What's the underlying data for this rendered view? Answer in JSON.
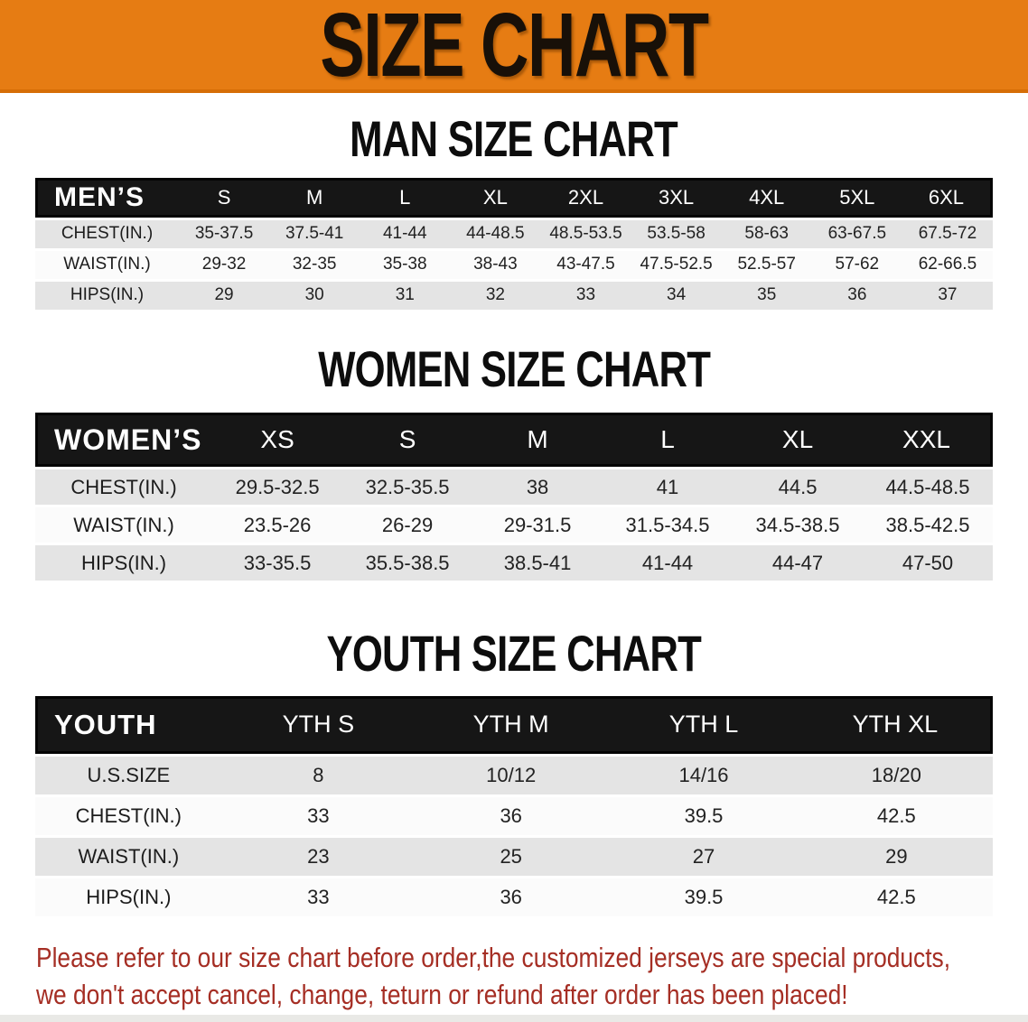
{
  "banner": {
    "title": "SIZE CHART",
    "bg_color": "#E67C13",
    "text_color": "#181008"
  },
  "sections": [
    {
      "heading": "MAN SIZE CHART",
      "table": {
        "label": "MEN’S",
        "columns": [
          "S",
          "M",
          "L",
          "XL",
          "2XL",
          "3XL",
          "4XL",
          "5XL",
          "6XL"
        ],
        "rows": [
          {
            "label": "CHEST(IN.)",
            "values": [
              "35-37.5",
              "37.5-41",
              "41-44",
              "44-48.5",
              "48.5-53.5",
              "53.5-58",
              "58-63",
              "63-67.5",
              "67.5-72"
            ]
          },
          {
            "label": "WAIST(IN.)",
            "values": [
              "29-32",
              "32-35",
              "35-38",
              "38-43",
              "43-47.5",
              "47.5-52.5",
              "52.5-57",
              "57-62",
              "62-66.5"
            ]
          },
          {
            "label": "HIPS(IN.)",
            "values": [
              "29",
              "30",
              "31",
              "32",
              "33",
              "34",
              "35",
              "36",
              "37"
            ]
          }
        ]
      }
    },
    {
      "heading": "WOMEN SIZE CHART",
      "table": {
        "label": "WOMEN’S",
        "columns": [
          "XS",
          "S",
          "M",
          "L",
          "XL",
          "XXL"
        ],
        "rows": [
          {
            "label": "CHEST(IN.)",
            "values": [
              "29.5-32.5",
              "32.5-35.5",
              "38",
              "41",
              "44.5",
              "44.5-48.5"
            ]
          },
          {
            "label": "WAIST(IN.)",
            "values": [
              "23.5-26",
              "26-29",
              "29-31.5",
              "31.5-34.5",
              "34.5-38.5",
              "38.5-42.5"
            ]
          },
          {
            "label": "HIPS(IN.)",
            "values": [
              "33-35.5",
              "35.5-38.5",
              "38.5-41",
              "41-44",
              "44-47",
              "47-50"
            ]
          }
        ]
      }
    },
    {
      "heading": "YOUTH SIZE CHART",
      "table": {
        "label": "YOUTH",
        "columns": [
          "YTH S",
          "YTH M",
          "YTH L",
          "YTH XL"
        ],
        "rows": [
          {
            "label": "U.S.SIZE",
            "values": [
              "8",
              "10/12",
              "14/16",
              "18/20"
            ]
          },
          {
            "label": "CHEST(IN.)",
            "values": [
              "33",
              "36",
              "39.5",
              "42.5"
            ]
          },
          {
            "label": "WAIST(IN.)",
            "values": [
              "23",
              "25",
              "27",
              "29"
            ]
          },
          {
            "label": "HIPS(IN.)",
            "values": [
              "33",
              "36",
              "39.5",
              "42.5"
            ]
          }
        ]
      }
    }
  ],
  "disclaimer": {
    "line1": "Please refer to our size chart before order,the customized jerseys are special products,",
    "line2": "we don't accept cancel, change, teturn or refund after order has been placed!",
    "color": "#A52E24"
  },
  "colors": {
    "header_row_bg": "#161616",
    "header_row_text": "#ffffff",
    "row_gray": "#E4E4E4",
    "row_white": "#FBFBFB"
  }
}
